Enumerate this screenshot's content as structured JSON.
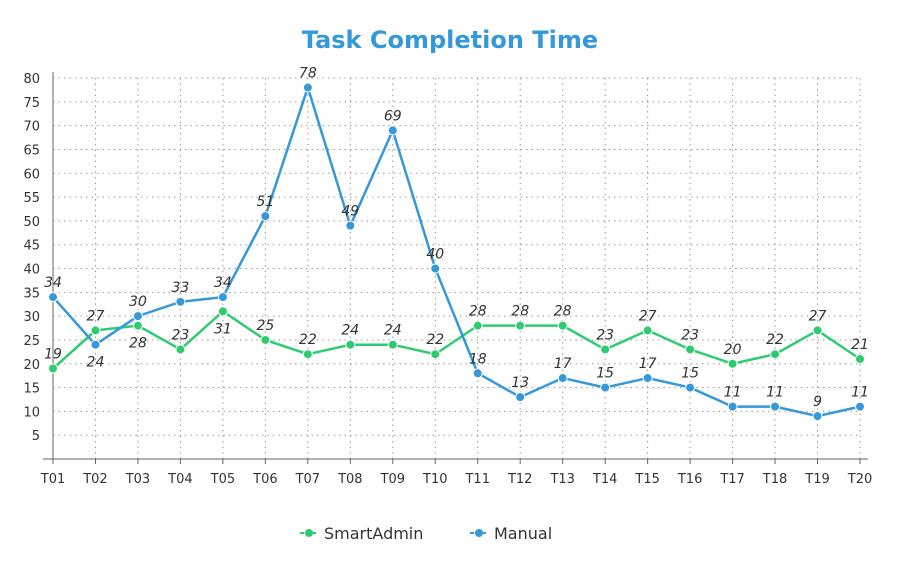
{
  "chart_data": {
    "type": "line",
    "title": "Task Completion Time",
    "xlabel": "",
    "ylabel": "",
    "categories": [
      "T01",
      "T02",
      "T03",
      "T04",
      "T05",
      "T06",
      "T07",
      "T08",
      "T09",
      "T10",
      "T11",
      "T12",
      "T13",
      "T14",
      "T15",
      "T16",
      "T17",
      "T18",
      "T19",
      "T20"
    ],
    "ylim": [
      0,
      80
    ],
    "yticks": [
      5,
      10,
      15,
      20,
      25,
      30,
      35,
      40,
      45,
      50,
      55,
      60,
      65,
      70,
      75,
      80
    ],
    "grid": true,
    "legend": "bottom",
    "series": [
      {
        "name": "SmartAdmin",
        "color": "#2ecc71",
        "values": [
          19,
          27,
          28,
          23,
          31,
          25,
          22,
          24,
          24,
          22,
          28,
          28,
          28,
          23,
          27,
          23,
          20,
          22,
          27,
          21
        ]
      },
      {
        "name": "Manual",
        "color": "#3498db",
        "values": [
          34,
          24,
          30,
          33,
          34,
          51,
          78,
          49,
          69,
          40,
          18,
          13,
          17,
          15,
          17,
          15,
          11,
          11,
          9,
          11
        ]
      }
    ],
    "title_color": "#3498db"
  }
}
